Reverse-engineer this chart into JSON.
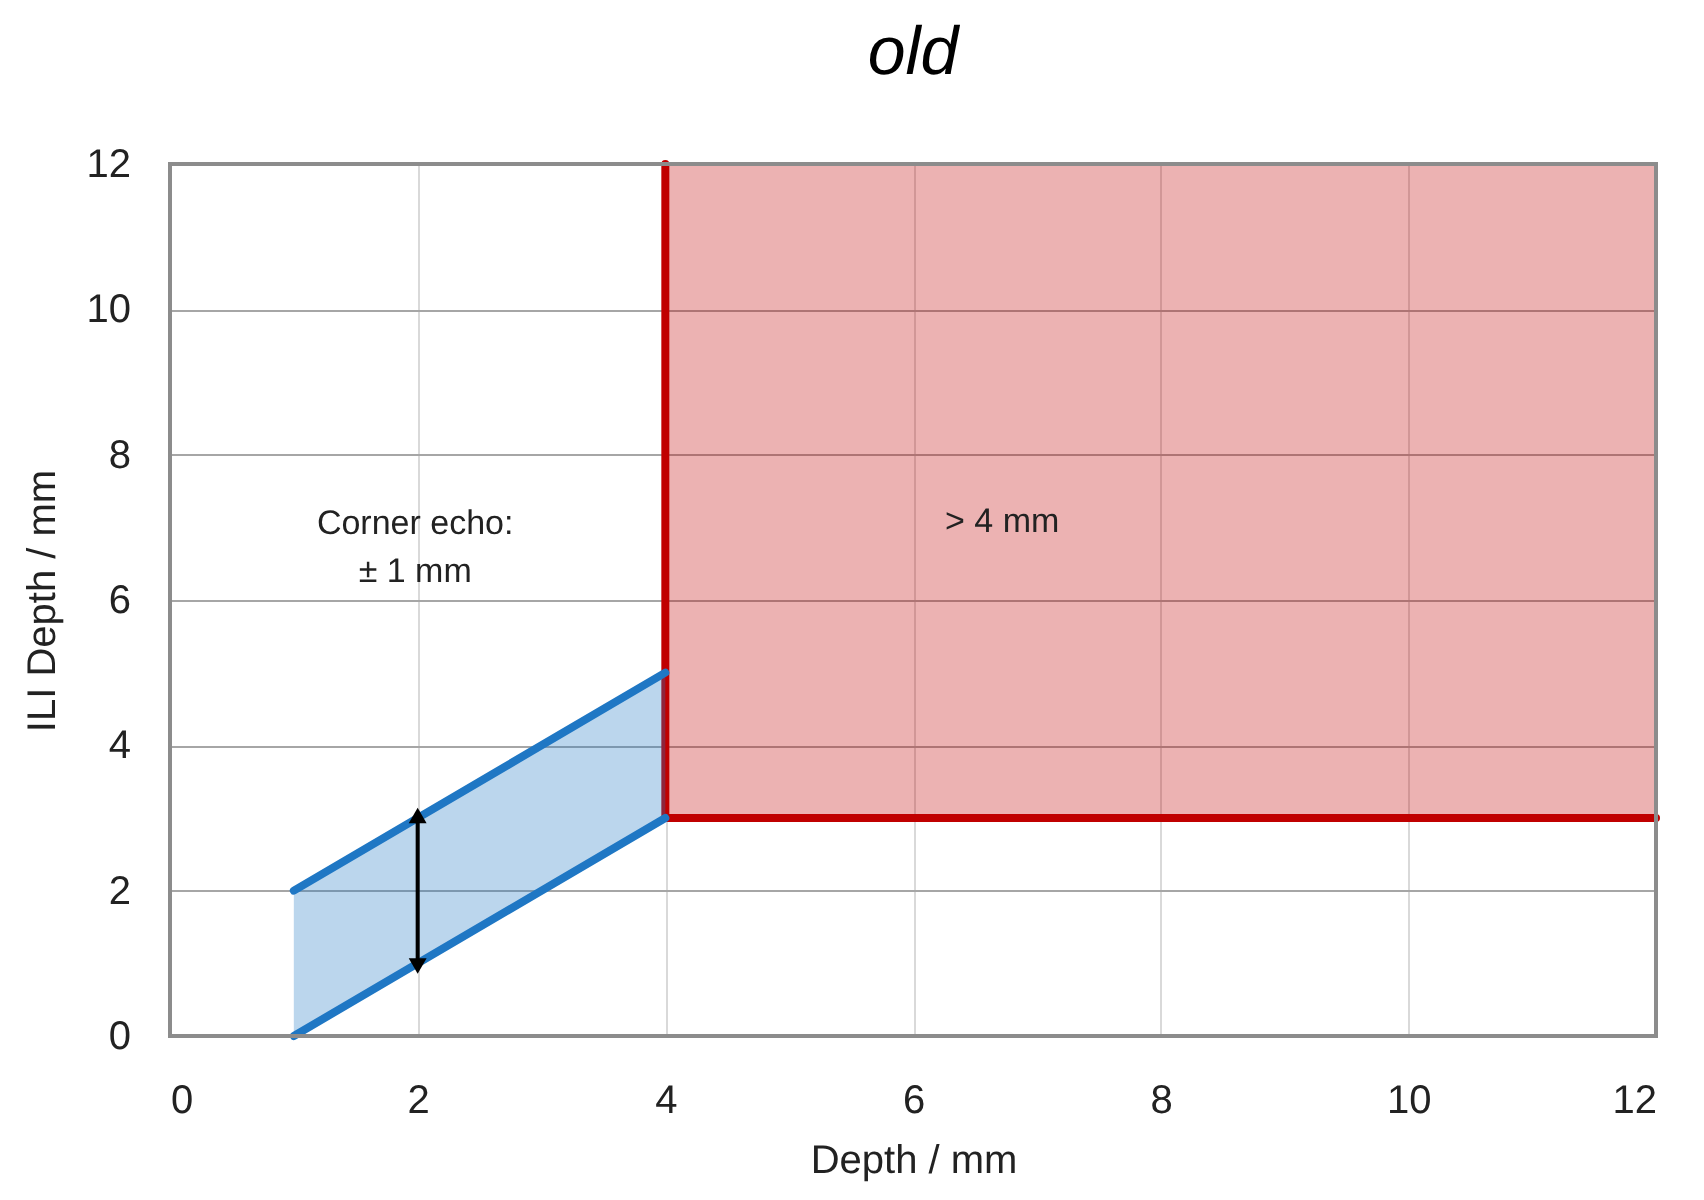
{
  "chart_data": {
    "type": "line",
    "title": "old",
    "xlabel": "Depth / mm",
    "ylabel": "ILI Depth / mm",
    "xlim": [
      0,
      12
    ],
    "ylim": [
      0,
      12
    ],
    "xticks": [
      0,
      2,
      4,
      6,
      8,
      10,
      12
    ],
    "yticks": [
      0,
      2,
      4,
      6,
      8,
      10,
      12
    ],
    "grid": true,
    "series": [
      {
        "color": "#c00000",
        "x": [
          4,
          4,
          12
        ],
        "values": [
          12,
          3,
          3
        ],
        "lower": [
          12,
          3,
          3
        ],
        "upper": [
          12,
          12,
          12
        ]
      },
      {
        "color": "#1f77c4",
        "x": [
          1,
          4
        ],
        "values": [
          0,
          3
        ],
        "lower": [
          0,
          3
        ],
        "upper": [
          2,
          5
        ]
      },
      {
        "color": "#1f77c4",
        "x": [
          1,
          4
        ],
        "values": [
          2,
          5
        ]
      }
    ],
    "annotations": [
      "Corner echo:\n± 1 mm",
      "> 4 mm"
    ]
  }
}
